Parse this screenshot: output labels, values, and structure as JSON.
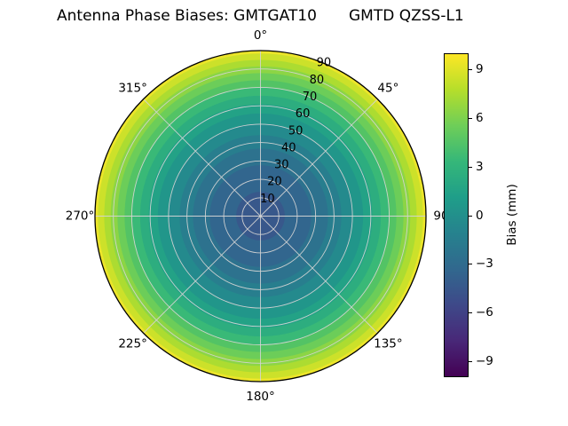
{
  "title": {
    "main": "Antenna Phase Biases: GMTGAT10",
    "sub": "GMTD QZSS-L1"
  },
  "style": {
    "grid_color": "#d4d4d4",
    "outline_color": "#000000",
    "background": "#ffffff"
  },
  "chart_data": {
    "type": "polar_filled_contour",
    "title": "Antenna Phase Biases: GMTGAT10        GMTD QZSS-L1",
    "angular_ticks": [
      "0°",
      "45°",
      "90",
      "135°",
      "180°",
      "225°",
      "270°",
      "315°"
    ],
    "angular_tick_angles_deg": [
      0,
      45,
      90,
      135,
      180,
      225,
      270,
      315
    ],
    "radial_ticks": [
      10,
      20,
      30,
      40,
      50,
      60,
      70,
      80,
      90
    ],
    "radial_max": 90,
    "radial_tick_angle_deg": 22.5,
    "profile": {
      "comment": "Bias is radially symmetric; value vs zenith angle (radius)",
      "zenith_deg": [
        0,
        10,
        20,
        30,
        40,
        50,
        60,
        70,
        80,
        90
      ],
      "bias_mm": [
        -4.3,
        -4.1,
        -3.6,
        -2.8,
        -1.6,
        0.0,
        1.8,
        4.1,
        6.6,
        9.5
      ]
    },
    "contour_bands": [
      {
        "level_min": 9,
        "level_max": 10,
        "outer_r_frac": 1.0,
        "color": "#ece52a"
      },
      {
        "level_min": 8,
        "level_max": 9,
        "outer_r_frac": 0.982,
        "color": "#cce12a"
      },
      {
        "level_min": 7,
        "level_max": 8,
        "outer_r_frac": 0.944,
        "color": "#acdc31"
      },
      {
        "level_min": 6,
        "level_max": 7,
        "outer_r_frac": 0.905,
        "color": "#8cd545"
      },
      {
        "level_min": 5,
        "level_max": 6,
        "outer_r_frac": 0.864,
        "color": "#6ccd59"
      },
      {
        "level_min": 4,
        "level_max": 5,
        "outer_r_frac": 0.821,
        "color": "#53c365"
      },
      {
        "level_min": 3,
        "level_max": 4,
        "outer_r_frac": 0.775,
        "color": "#39b977"
      },
      {
        "level_min": 2,
        "level_max": 3,
        "outer_r_frac": 0.727,
        "color": "#2dad7f"
      },
      {
        "level_min": 1,
        "level_max": 2,
        "outer_r_frac": 0.676,
        "color": "#23a286"
      },
      {
        "level_min": 0,
        "level_max": 1,
        "outer_r_frac": 0.62,
        "color": "#21968a"
      },
      {
        "level_min": -1,
        "level_max": 0,
        "outer_r_frac": 0.558,
        "color": "#248a8d"
      },
      {
        "level_min": -2,
        "level_max": -1,
        "outer_r_frac": 0.489,
        "color": "#287e8e"
      },
      {
        "level_min": -3,
        "level_max": -2,
        "outer_r_frac": 0.408,
        "color": "#2d728e"
      },
      {
        "level_min": -4,
        "level_max": -3,
        "outer_r_frac": 0.307,
        "color": "#32668e"
      },
      {
        "level_min": -5,
        "level_max": -4,
        "outer_r_frac": 0.147,
        "color": "#38588b"
      }
    ],
    "colorbar": {
      "label": "Bias (mm)",
      "ticks": [
        "9",
        "6",
        "3",
        "0",
        "−3",
        "−6",
        "−9"
      ],
      "tick_values": [
        9,
        6,
        3,
        0,
        -3,
        -6,
        -9
      ],
      "vmin": -10,
      "vmax": 10,
      "stops_top_to_bottom": [
        "#fde725",
        "#b5de2b",
        "#6ece58",
        "#35b779",
        "#1f9e89",
        "#26828e",
        "#31688e",
        "#3e4989",
        "#482878",
        "#440154"
      ]
    }
  }
}
